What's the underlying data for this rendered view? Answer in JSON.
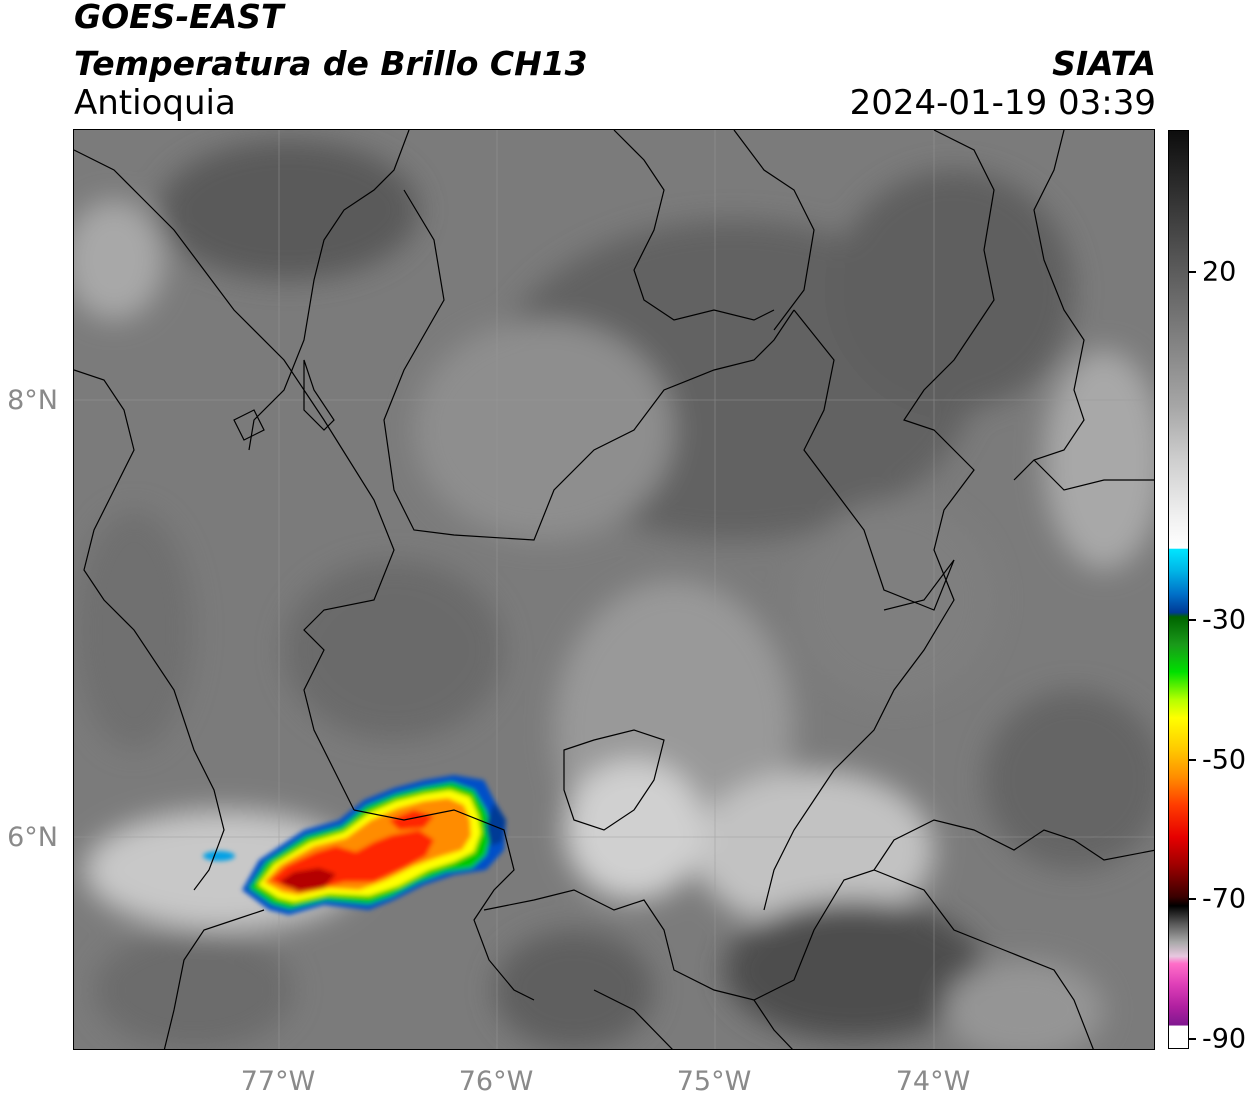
{
  "header": {
    "title_line1": "GOES-EAST",
    "title_line2": "Temperatura de Brillo CH13",
    "region": "Antioquia",
    "organization": "SIATA",
    "datetime": "2024-01-19 03:39"
  },
  "map": {
    "lat_labels": [
      "8°N",
      "6°N"
    ],
    "lon_labels": [
      "77°W",
      "76°W",
      "75°W",
      "74°W"
    ],
    "background": "grayscale infrared brightness temperature",
    "storm_colors": [
      "#0050c8",
      "#00c800",
      "#ffff00",
      "#ff8c00",
      "#ff2800",
      "#b40000"
    ]
  },
  "colorbar": {
    "tick_labels": [
      "20",
      "-30",
      "-50",
      "-70",
      "-90"
    ]
  }
}
